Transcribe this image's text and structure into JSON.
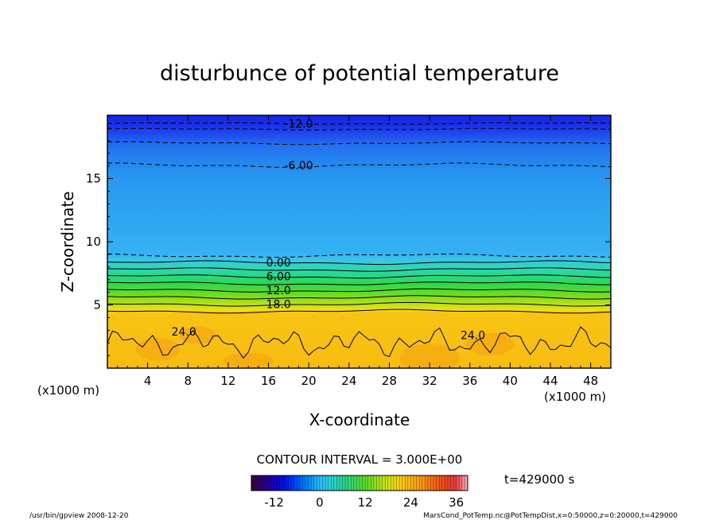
{
  "chart_data": {
    "type": "heatmap",
    "title": "disturbunce of potential temperature",
    "xlabel": "X-coordinate",
    "ylabel": "Z-coordinate",
    "x_unit": "(x1000 m)",
    "y_unit": "(x1000 m)",
    "xlim": [
      0,
      50
    ],
    "ylim": [
      0,
      20
    ],
    "x_ticks": [
      "4",
      "8",
      "12",
      "16",
      "20",
      "24",
      "28",
      "32",
      "36",
      "40",
      "44",
      "48"
    ],
    "x_tick_values": [
      4,
      8,
      12,
      16,
      20,
      24,
      28,
      32,
      36,
      40,
      44,
      48
    ],
    "y_ticks": [
      "5",
      "10",
      "15"
    ],
    "y_tick_values": [
      5,
      10,
      15
    ],
    "contour_interval_text": "CONTOUR INTERVAL = 3.000E+00",
    "contour_interval": 3.0,
    "contour_labels": [
      {
        "text": "-12.0",
        "x": 19,
        "z": 19.35
      },
      {
        "text": "-6.00",
        "x": 19,
        "z": 16.05
      },
      {
        "text": "0.00",
        "x": 17,
        "z": 8.35
      },
      {
        "text": "6.00",
        "x": 17,
        "z": 7.25
      },
      {
        "text": "12.0",
        "x": 17,
        "z": 6.15
      },
      {
        "text": "18.0",
        "x": 17,
        "z": 5.05
      },
      {
        "text": "24.0",
        "x": 7.6,
        "z": 2.9
      },
      {
        "text": "24.0",
        "x": 36.3,
        "z": 2.6
      }
    ],
    "colorbar": {
      "ticks": [
        "-12",
        "0",
        "12",
        "24",
        "36"
      ],
      "tick_values": [
        -12,
        0,
        12,
        24,
        36
      ],
      "range": [
        -18,
        39
      ]
    },
    "time_label": "t=429000 s",
    "footer_left": "/usr/bin/gpview   2008-12-20",
    "footer_right": "MarsCond_PotTemp.nc@PotTempDist,x=0:50000,z=0:20000,t=429000",
    "colors": {
      "upper_blue": "#1a2ee8",
      "mid_blue": "#2aa0f0",
      "light_blue": "#34b4f4",
      "green": "#60d838",
      "lower_orange": "#f8bc10"
    }
  }
}
